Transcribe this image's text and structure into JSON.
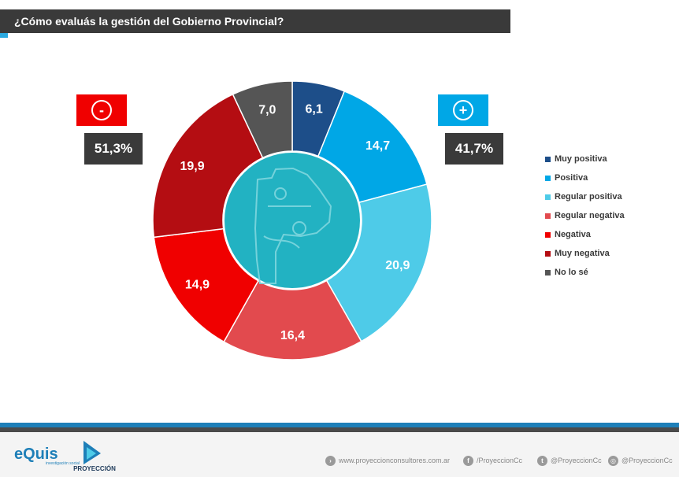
{
  "header": {
    "title": "¿Cómo evaluás la gestión del Gobierno Provincial?"
  },
  "chart_data": {
    "type": "pie",
    "title": "",
    "series": [
      {
        "name": "Muy positiva",
        "value": 6.1,
        "label": "6,1",
        "color": "#1d4e89"
      },
      {
        "name": "Positiva",
        "value": 14.7,
        "label": "14,7",
        "color": "#00a7e6"
      },
      {
        "name": "Regular positiva",
        "value": 20.9,
        "label": "20,9",
        "color": "#4ecbe8"
      },
      {
        "name": "Regular negativa",
        "value": 16.4,
        "label": "16,4",
        "color": "#e24a4e"
      },
      {
        "name": "Negativa",
        "value": 14.9,
        "label": "14,9",
        "color": "#f00000"
      },
      {
        "name": "Muy negativa",
        "value": 19.9,
        "label": "19,9",
        "color": "#b40d12"
      },
      {
        "name": "No lo sé",
        "value": 7.0,
        "label": "7,0",
        "color": "#555555"
      }
    ],
    "legend_position": "right",
    "center_color": "#22b2c2",
    "center_icon": "buenos-aires-province-map-icon"
  },
  "summary": {
    "negative": {
      "symbol": "-",
      "total": "51,3%",
      "color": "#f00000"
    },
    "positive": {
      "symbol": "+",
      "total": "41,7%",
      "color": "#00a7e6"
    }
  },
  "footer": {
    "logo_equis": "eQuis",
    "logo_equis_sub": "investigación social",
    "logo_proyeccion": "PROYECCIÓN",
    "links": [
      {
        "icon": "globe-icon",
        "glyph": "›",
        "text": "www.proyeccionconsultores.com.ar"
      },
      {
        "icon": "facebook-icon",
        "glyph": "f",
        "text": "/ProyeccionCc"
      },
      {
        "icon": "twitter-icon",
        "glyph": "t",
        "text": "@ProyeccionCc"
      },
      {
        "icon": "instagram-icon",
        "glyph": "◎",
        "text": "@ProyeccionCc"
      }
    ]
  }
}
